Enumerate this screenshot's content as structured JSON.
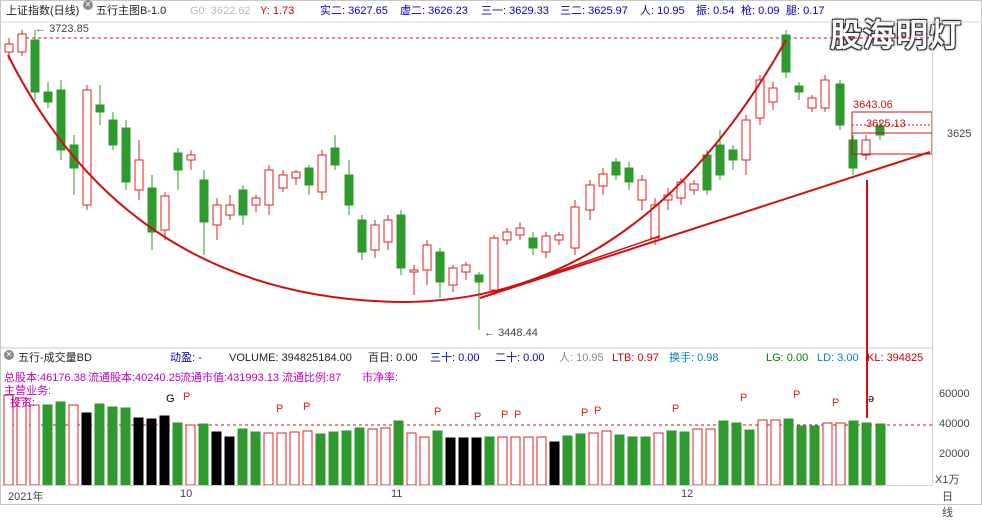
{
  "topbar": {
    "index_name": "上证指数(日线)",
    "main_chart_label": "五行主图B-1.0",
    "g0": "G0: 3622.62",
    "y": "Y: 1.73",
    "shi2": "实二: 3627.65",
    "xu2": "虚二: 3626.23",
    "san1": "三一: 3629.33",
    "san2": "三二: 3625.97",
    "ren": "人: 10.95",
    "zhen": "振: 0.54",
    "qiang": "枪: 0.09",
    "tui": "腿: 0.17"
  },
  "watermark": "股海明灯",
  "price_annotations": {
    "high": "3723.85",
    "low": "3448.44",
    "recent_high": "3643.06",
    "recent_close": "3625.13",
    "axis_3625": "3625"
  },
  "volume_panel": {
    "title": "五行-成交量BD",
    "dongying": "动盈: -",
    "volume": "VOLUME: 394825184.00",
    "bairi": "百日: 0.00",
    "sanshi": "三十: 0.00",
    "ershi": "二十: 0.00",
    "ren": "人: 10.95",
    "ltb": "LTB: 0.97",
    "huanshou": "换手: 0.98",
    "lg": "LG: 0.00",
    "ld": "LD: 3.00",
    "kl": "KL: 394825"
  },
  "fundamentals": {
    "total_shares": "总股本:46176.38",
    "float_shares": "流通股本:40240.25",
    "float_value": "流通市值:431993.13",
    "float_ratio": "流通比例:87",
    "pb": "市净率:",
    "main_business": "主营业务:",
    "investment": "投资:"
  },
  "volume_axis": {
    "v60000": "60000",
    "v40000": "40000",
    "v20000": "20000",
    "unit": "X1万"
  },
  "date_axis": {
    "d2021": "2021年",
    "d10": "10",
    "d11": "11",
    "d12": "12",
    "period": "日线"
  },
  "markers": {
    "p": "P",
    "g": "G",
    "e": "ə"
  },
  "colors": {
    "up": "#e02020",
    "down": "#2e9a2e",
    "black": "#000000",
    "curve": "#d01010",
    "dash": "#d01010"
  }
}
